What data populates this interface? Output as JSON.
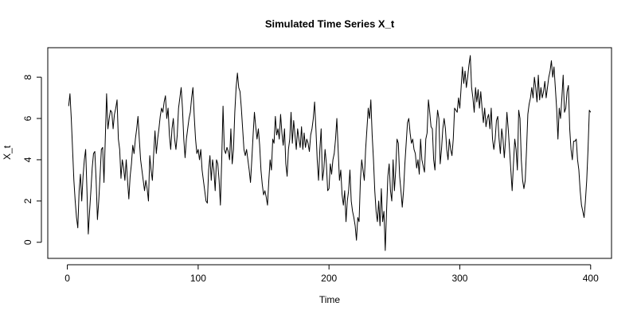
{
  "chart_data": {
    "type": "line",
    "title": "Simulated Time Series X_t",
    "xlabel": "Time",
    "ylabel": "X_t",
    "color": "#000000",
    "xlim": [
      -14.96,
      415.96
    ],
    "ylim": [
      -0.78,
      9.43
    ],
    "xticks": [
      0,
      100,
      200,
      300,
      400
    ],
    "yticks": [
      0,
      2,
      4,
      6,
      8
    ],
    "x": [
      1,
      2,
      3,
      4,
      5,
      6,
      7,
      8,
      9,
      10,
      11,
      12,
      13,
      14,
      15,
      16,
      17,
      18,
      19,
      20,
      21,
      22,
      23,
      24,
      25,
      26,
      27,
      28,
      29,
      30,
      31,
      32,
      33,
      34,
      35,
      36,
      37,
      38,
      39,
      40,
      41,
      42,
      43,
      44,
      45,
      46,
      47,
      48,
      49,
      50,
      51,
      52,
      53,
      54,
      55,
      56,
      57,
      58,
      59,
      60,
      61,
      62,
      63,
      64,
      65,
      66,
      67,
      68,
      69,
      70,
      71,
      72,
      73,
      74,
      75,
      76,
      77,
      78,
      79,
      80,
      81,
      82,
      83,
      84,
      85,
      86,
      87,
      88,
      89,
      90,
      91,
      92,
      93,
      94,
      95,
      96,
      97,
      98,
      99,
      100,
      101,
      102,
      103,
      104,
      105,
      106,
      107,
      108,
      109,
      110,
      111,
      112,
      113,
      114,
      115,
      116,
      117,
      118,
      119,
      120,
      121,
      122,
      123,
      124,
      125,
      126,
      127,
      128,
      129,
      130,
      131,
      132,
      133,
      134,
      135,
      136,
      137,
      138,
      139,
      140,
      141,
      142,
      143,
      144,
      145,
      146,
      147,
      148,
      149,
      150,
      151,
      152,
      153,
      154,
      155,
      156,
      157,
      158,
      159,
      160,
      161,
      162,
      163,
      164,
      165,
      166,
      167,
      168,
      169,
      170,
      171,
      172,
      173,
      174,
      175,
      176,
      177,
      178,
      179,
      180,
      181,
      182,
      183,
      184,
      185,
      186,
      187,
      188,
      189,
      190,
      191,
      192,
      193,
      194,
      195,
      196,
      197,
      198,
      199,
      200,
      201,
      202,
      203,
      204,
      205,
      206,
      207,
      208,
      209,
      210,
      211,
      212,
      213,
      214,
      215,
      216,
      217,
      218,
      219,
      220,
      221,
      222,
      223,
      224,
      225,
      226,
      227,
      228,
      229,
      230,
      231,
      232,
      233,
      234,
      235,
      236,
      237,
      238,
      239,
      240,
      241,
      242,
      243,
      244,
      245,
      246,
      247,
      248,
      249,
      250,
      251,
      252,
      253,
      254,
      255,
      256,
      257,
      258,
      259,
      260,
      261,
      262,
      263,
      264,
      265,
      266,
      267,
      268,
      269,
      270,
      271,
      272,
      273,
      274,
      275,
      276,
      277,
      278,
      279,
      280,
      281,
      282,
      283,
      284,
      285,
      286,
      287,
      288,
      289,
      290,
      291,
      292,
      293,
      294,
      295,
      296,
      297,
      298,
      299,
      300,
      301,
      302,
      303,
      304,
      305,
      306,
      307,
      308,
      309,
      310,
      311,
      312,
      313,
      314,
      315,
      316,
      317,
      318,
      319,
      320,
      321,
      322,
      323,
      324,
      325,
      326,
      327,
      328,
      329,
      330,
      331,
      332,
      333,
      334,
      335,
      336,
      337,
      338,
      339,
      340,
      341,
      342,
      343,
      344,
      345,
      346,
      347,
      348,
      349,
      350,
      351,
      352,
      353,
      354,
      355,
      356,
      357,
      358,
      359,
      360,
      361,
      362,
      363,
      364,
      365,
      366,
      367,
      368,
      369,
      370,
      371,
      372,
      373,
      374,
      375,
      376,
      377,
      378,
      379,
      380,
      381,
      382,
      383,
      384,
      385,
      386,
      387,
      388,
      389,
      390,
      391,
      392,
      393,
      394,
      395,
      396,
      397,
      398,
      399,
      400
    ],
    "values": [
      6.6,
      7.2,
      6.0,
      4.5,
      3.0,
      2.0,
      1.2,
      0.7,
      2.5,
      3.3,
      2.0,
      3.2,
      4.0,
      4.5,
      2.5,
      0.4,
      1.5,
      2.5,
      3.6,
      4.3,
      4.4,
      3.0,
      1.1,
      2.0,
      3.2,
      4.5,
      4.6,
      2.9,
      5.0,
      7.2,
      5.5,
      6.0,
      6.4,
      6.3,
      5.5,
      6.2,
      6.5,
      6.9,
      5.0,
      4.5,
      3.1,
      4.0,
      3.6,
      3.0,
      4.0,
      3.0,
      2.1,
      3.2,
      3.8,
      4.7,
      4.3,
      5.0,
      5.5,
      6.1,
      5.0,
      4.0,
      3.5,
      3.0,
      2.5,
      3.0,
      2.6,
      2.0,
      4.2,
      3.5,
      3.0,
      4.3,
      5.4,
      4.3,
      5.0,
      5.5,
      6.1,
      6.5,
      6.3,
      6.8,
      7.1,
      6.0,
      6.5,
      5.2,
      4.5,
      5.5,
      6.0,
      5.0,
      4.5,
      5.2,
      6.5,
      7.0,
      7.5,
      6.5,
      5.0,
      4.1,
      5.0,
      5.5,
      6.0,
      6.3,
      7.0,
      7.5,
      6.1,
      5.0,
      4.3,
      4.5,
      4.0,
      4.5,
      3.5,
      3.0,
      2.5,
      2.0,
      1.9,
      3.5,
      4.2,
      3.0,
      4.0,
      3.5,
      2.5,
      4.0,
      3.8,
      3.0,
      1.8,
      4.0,
      6.6,
      4.5,
      4.3,
      4.6,
      4.4,
      4.0,
      5.5,
      3.8,
      4.5,
      6.3,
      7.5,
      8.2,
      7.5,
      7.3,
      6.5,
      5.5,
      4.5,
      4.2,
      4.5,
      4.0,
      3.5,
      2.9,
      4.0,
      5.2,
      6.3,
      5.6,
      5.0,
      5.5,
      4.7,
      3.5,
      2.8,
      2.3,
      2.5,
      2.2,
      1.8,
      3.0,
      4.0,
      3.5,
      5.0,
      4.8,
      6.1,
      5.2,
      5.5,
      5.0,
      6.2,
      5.3,
      4.7,
      5.5,
      3.8,
      3.2,
      4.5,
      5.0,
      6.3,
      4.8,
      5.9,
      5.2,
      4.5,
      5.5,
      5.0,
      4.6,
      5.6,
      4.5,
      5.3,
      4.6,
      5.0,
      4.8,
      4.4,
      5.2,
      5.5,
      6.0,
      6.8,
      5.5,
      4.0,
      3.0,
      4.5,
      5.5,
      3.0,
      3.5,
      4.5,
      3.8,
      2.5,
      2.6,
      3.8,
      3.3,
      4.0,
      4.3,
      5.0,
      6.0,
      4.5,
      3.0,
      3.5,
      2.3,
      1.8,
      2.5,
      1.0,
      2.0,
      2.5,
      3.5,
      2.0,
      1.5,
      1.2,
      0.8,
      0.1,
      1.2,
      1.0,
      3.0,
      4.0,
      3.5,
      3.0,
      4.5,
      5.5,
      6.5,
      6.0,
      6.9,
      5.2,
      4.0,
      2.5,
      1.5,
      1.0,
      2.0,
      0.8,
      2.6,
      1.0,
      1.5,
      -0.4,
      1.5,
      3.2,
      3.8,
      2.5,
      2.0,
      4.0,
      2.5,
      3.5,
      5.0,
      4.8,
      3.2,
      2.5,
      1.7,
      2.5,
      3.8,
      4.8,
      5.8,
      6.0,
      5.3,
      4.8,
      5.0,
      4.5,
      4.3,
      3.6,
      4.0,
      3.3,
      5.0,
      4.0,
      3.7,
      3.4,
      5.0,
      5.3,
      6.9,
      6.3,
      5.6,
      5.5,
      4.0,
      3.5,
      5.5,
      6.4,
      6.0,
      3.8,
      4.5,
      5.5,
      6.0,
      5.5,
      4.5,
      4.0,
      5.0,
      4.5,
      4.2,
      5.0,
      6.5,
      6.4,
      6.3,
      7.0,
      6.5,
      7.5,
      8.5,
      7.7,
      8.3,
      7.5,
      8.0,
      8.6,
      9.05,
      7.5,
      7.0,
      6.3,
      7.5,
      6.8,
      7.4,
      6.5,
      7.3,
      6.5,
      5.8,
      6.5,
      5.6,
      6.0,
      6.2,
      5.5,
      6.5,
      5.0,
      4.5,
      5.0,
      5.9,
      6.1,
      5.0,
      4.3,
      5.5,
      5.0,
      4.1,
      5.0,
      6.3,
      5.5,
      4.5,
      3.5,
      2.5,
      3.8,
      5.0,
      4.5,
      3.5,
      6.4,
      6.0,
      4.0,
      3.0,
      2.6,
      3.0,
      4.5,
      6.2,
      6.7,
      7.0,
      7.5,
      7.0,
      8.0,
      7.5,
      6.8,
      8.1,
      6.9,
      7.5,
      7.0,
      7.3,
      7.8,
      7.0,
      7.5,
      8.0,
      8.3,
      8.8,
      8.0,
      8.5,
      7.5,
      6.5,
      5.0,
      6.5,
      6.0,
      7.0,
      8.1,
      6.3,
      6.5,
      7.3,
      7.6,
      5.5,
      4.5,
      4.0,
      4.9,
      4.9,
      5.0,
      4.0,
      3.5,
      2.5,
      1.8,
      1.5,
      1.2,
      2.0,
      3.0,
      4.5,
      6.4,
      6.3
    ]
  }
}
